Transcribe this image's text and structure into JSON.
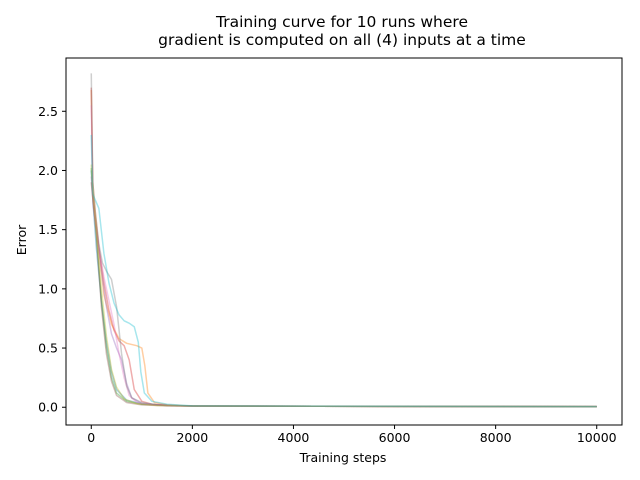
{
  "chart_data": {
    "type": "line",
    "title": [
      "Training curve for 10 runs where",
      "gradient is computed on all (4) inputs at a time"
    ],
    "xlabel": "Training steps",
    "ylabel": "Error",
    "xlim": [
      -500,
      10500
    ],
    "ylim": [
      -0.15,
      2.95
    ],
    "xticks": [
      0,
      2000,
      4000,
      6000,
      8000,
      10000
    ],
    "yticks": [
      0.0,
      0.5,
      1.0,
      1.5,
      2.0,
      2.5
    ],
    "xtick_labels": [
      "0",
      "2000",
      "4000",
      "6000",
      "8000",
      "10000"
    ],
    "ytick_labels": [
      "0.0",
      "0.5",
      "1.0",
      "1.5",
      "2.0",
      "2.5"
    ],
    "grid": false,
    "legend": "none",
    "series": [
      {
        "color": "#1f77b4",
        "points": [
          [
            0,
            2.0
          ],
          [
            40,
            1.7
          ],
          [
            100,
            1.35
          ],
          [
            200,
            0.9
          ],
          [
            300,
            0.55
          ],
          [
            400,
            0.3
          ],
          [
            500,
            0.15
          ],
          [
            700,
            0.06
          ],
          [
            1000,
            0.03
          ],
          [
            1500,
            0.015
          ],
          [
            2000,
            0.01
          ],
          [
            10000,
            0.005
          ]
        ]
      },
      {
        "color": "#ff7f0e",
        "points": [
          [
            0,
            2.68
          ],
          [
            30,
            1.9
          ],
          [
            80,
            1.65
          ],
          [
            150,
            1.35
          ],
          [
            250,
            0.95
          ],
          [
            400,
            0.7
          ],
          [
            550,
            0.58
          ],
          [
            700,
            0.54
          ],
          [
            900,
            0.52
          ],
          [
            1000,
            0.5
          ],
          [
            1060,
            0.35
          ],
          [
            1120,
            0.12
          ],
          [
            1250,
            0.04
          ],
          [
            1500,
            0.02
          ],
          [
            2000,
            0.01
          ],
          [
            10000,
            0.005
          ]
        ]
      },
      {
        "color": "#2ca02c",
        "points": [
          [
            0,
            2.02
          ],
          [
            40,
            1.75
          ],
          [
            100,
            1.45
          ],
          [
            200,
            0.9
          ],
          [
            300,
            0.5
          ],
          [
            400,
            0.25
          ],
          [
            500,
            0.12
          ],
          [
            700,
            0.05
          ],
          [
            1000,
            0.025
          ],
          [
            1500,
            0.015
          ],
          [
            2000,
            0.01
          ],
          [
            10000,
            0.005
          ]
        ]
      },
      {
        "color": "#d62728",
        "points": [
          [
            0,
            2.7
          ],
          [
            30,
            1.8
          ],
          [
            80,
            1.6
          ],
          [
            150,
            1.35
          ],
          [
            250,
            1.05
          ],
          [
            350,
            0.82
          ],
          [
            450,
            0.65
          ],
          [
            550,
            0.56
          ],
          [
            650,
            0.52
          ],
          [
            750,
            0.4
          ],
          [
            850,
            0.15
          ],
          [
            1000,
            0.05
          ],
          [
            1200,
            0.025
          ],
          [
            1600,
            0.015
          ],
          [
            2000,
            0.01
          ],
          [
            10000,
            0.005
          ]
        ]
      },
      {
        "color": "#9467bd",
        "points": [
          [
            0,
            1.95
          ],
          [
            40,
            1.7
          ],
          [
            100,
            1.5
          ],
          [
            200,
            1.15
          ],
          [
            300,
            0.85
          ],
          [
            400,
            0.62
          ],
          [
            500,
            0.5
          ],
          [
            600,
            0.4
          ],
          [
            700,
            0.2
          ],
          [
            800,
            0.08
          ],
          [
            1000,
            0.03
          ],
          [
            1500,
            0.015
          ],
          [
            2000,
            0.01
          ],
          [
            10000,
            0.005
          ]
        ]
      },
      {
        "color": "#8c564b",
        "points": [
          [
            0,
            1.9
          ],
          [
            40,
            1.72
          ],
          [
            100,
            1.48
          ],
          [
            200,
            0.85
          ],
          [
            300,
            0.45
          ],
          [
            400,
            0.22
          ],
          [
            500,
            0.1
          ],
          [
            700,
            0.04
          ],
          [
            1000,
            0.02
          ],
          [
            1500,
            0.012
          ],
          [
            2000,
            0.01
          ],
          [
            10000,
            0.005
          ]
        ]
      },
      {
        "color": "#e377c2",
        "points": [
          [
            0,
            2.55
          ],
          [
            30,
            1.8
          ],
          [
            80,
            1.58
          ],
          [
            150,
            1.35
          ],
          [
            250,
            1.1
          ],
          [
            350,
            0.9
          ],
          [
            450,
            0.7
          ],
          [
            550,
            0.45
          ],
          [
            650,
            0.25
          ],
          [
            750,
            0.1
          ],
          [
            900,
            0.04
          ],
          [
            1200,
            0.02
          ],
          [
            1600,
            0.012
          ],
          [
            2000,
            0.01
          ],
          [
            10000,
            0.005
          ]
        ]
      },
      {
        "color": "#7f7f7f",
        "points": [
          [
            0,
            2.82
          ],
          [
            30,
            1.9
          ],
          [
            80,
            1.65
          ],
          [
            150,
            1.38
          ],
          [
            220,
            1.22
          ],
          [
            300,
            1.15
          ],
          [
            400,
            1.08
          ],
          [
            500,
            0.85
          ],
          [
            600,
            0.45
          ],
          [
            700,
            0.18
          ],
          [
            800,
            0.08
          ],
          [
            1000,
            0.04
          ],
          [
            1300,
            0.02
          ],
          [
            1700,
            0.012
          ],
          [
            2000,
            0.01
          ],
          [
            10000,
            0.005
          ]
        ]
      },
      {
        "color": "#bcbd22",
        "points": [
          [
            0,
            2.05
          ],
          [
            40,
            1.75
          ],
          [
            100,
            1.5
          ],
          [
            200,
            1.0
          ],
          [
            300,
            0.6
          ],
          [
            400,
            0.32
          ],
          [
            500,
            0.17
          ],
          [
            650,
            0.07
          ],
          [
            900,
            0.03
          ],
          [
            1300,
            0.015
          ],
          [
            2000,
            0.01
          ],
          [
            10000,
            0.005
          ]
        ]
      },
      {
        "color": "#17becf",
        "points": [
          [
            0,
            2.3
          ],
          [
            30,
            1.8
          ],
          [
            80,
            1.75
          ],
          [
            150,
            1.68
          ],
          [
            250,
            1.3
          ],
          [
            350,
            1.05
          ],
          [
            450,
            0.88
          ],
          [
            550,
            0.78
          ],
          [
            650,
            0.73
          ],
          [
            750,
            0.71
          ],
          [
            850,
            0.68
          ],
          [
            930,
            0.55
          ],
          [
            980,
            0.3
          ],
          [
            1050,
            0.12
          ],
          [
            1200,
            0.05
          ],
          [
            1500,
            0.025
          ],
          [
            2000,
            0.012
          ],
          [
            10000,
            0.005
          ]
        ]
      }
    ]
  }
}
